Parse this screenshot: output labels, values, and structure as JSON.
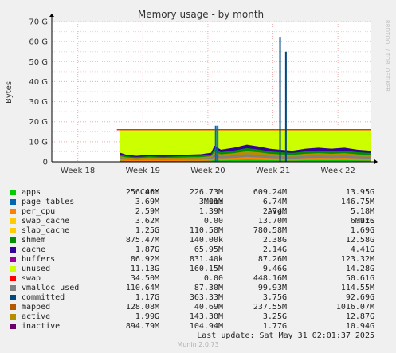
{
  "chart_data": {
    "type": "area",
    "title": "Memory usage - by month",
    "ylabel": "Bytes",
    "side_label": "RRDTOOL / TOBI OETIKER",
    "ylim": [
      0,
      70
    ],
    "y_ticks": [
      {
        "v": 0,
        "label": "0"
      },
      {
        "v": 10,
        "label": "10 G"
      },
      {
        "v": 20,
        "label": "20 G"
      },
      {
        "v": 30,
        "label": "30 G"
      },
      {
        "v": 40,
        "label": "40 G"
      },
      {
        "v": 50,
        "label": "50 G"
      },
      {
        "v": 60,
        "label": "60 G"
      },
      {
        "v": 70,
        "label": "70 G"
      }
    ],
    "xlim": [
      0,
      4.9
    ],
    "x_ticks": [
      {
        "v": 0.4,
        "label": "Week 18"
      },
      {
        "v": 1.4,
        "label": "Week 19"
      },
      {
        "v": 2.4,
        "label": "Week 20"
      },
      {
        "v": 3.4,
        "label": "Week 21"
      },
      {
        "v": 4.4,
        "label": "Week 22"
      }
    ],
    "unused_band": {
      "start": 1.05,
      "end": 4.9,
      "top_gb": 15.8,
      "color": "#ccff00"
    },
    "swap_line_gb": 16.0,
    "stacked_activity": {
      "x": [
        1.05,
        1.15,
        1.3,
        1.5,
        1.7,
        1.9,
        2.1,
        2.3,
        2.45,
        2.5,
        2.6,
        2.8,
        3.0,
        3.2,
        3.35,
        3.5,
        3.7,
        3.9,
        4.1,
        4.3,
        4.5,
        4.7,
        4.9
      ],
      "y": [
        4.5,
        3.5,
        3.0,
        3.5,
        3.2,
        3.4,
        3.6,
        3.8,
        4.5,
        8.0,
        6.0,
        7.0,
        8.5,
        7.5,
        6.5,
        6.0,
        5.5,
        6.5,
        7.0,
        6.5,
        7.0,
        6.0,
        5.5
      ]
    },
    "peaks": [
      {
        "x": 2.52,
        "y": 18.0,
        "color": "#0066b3"
      },
      {
        "x": 2.55,
        "y": 18.0,
        "color": "#0066b3"
      },
      {
        "x": 3.51,
        "y": 62.0,
        "color": "#00487d"
      },
      {
        "x": 3.6,
        "y": 55.0,
        "color": "#00487d"
      }
    ]
  },
  "legend": {
    "headers": {
      "cur": "Cur:",
      "min": "Min:",
      "avg": "Avg:",
      "max": "Max:"
    },
    "rows": [
      {
        "name": "apps",
        "color": "#00cc00",
        "cur": "256.46M",
        "min": "226.73M",
        "avg": "609.24M",
        "max": "13.95G"
      },
      {
        "name": "page_tables",
        "color": "#0066b3",
        "cur": "3.69M",
        "min": "3.01M",
        "avg": "6.74M",
        "max": "146.75M"
      },
      {
        "name": "per_cpu",
        "color": "#ff8000",
        "cur": "2.59M",
        "min": "1.39M",
        "avg": "2.74M",
        "max": "5.18M"
      },
      {
        "name": "swap_cache",
        "color": "#ffcc00",
        "cur": "3.62M",
        "min": "0.00",
        "avg": "13.70M",
        "max": "6.91G"
      },
      {
        "name": "slab_cache",
        "color": "#ffcc00",
        "cur": "1.25G",
        "min": "110.58M",
        "avg": "780.58M",
        "max": "1.69G"
      },
      {
        "name": "shmem",
        "color": "#008f00",
        "cur": "875.47M",
        "min": "140.00k",
        "avg": "2.38G",
        "max": "12.58G"
      },
      {
        "name": "cache",
        "color": "#330099",
        "cur": "1.87G",
        "min": "65.95M",
        "avg": "2.14G",
        "max": "4.41G"
      },
      {
        "name": "buffers",
        "color": "#990099",
        "cur": "86.92M",
        "min": "831.40k",
        "avg": "87.26M",
        "max": "123.32M"
      },
      {
        "name": "unused",
        "color": "#ccff00",
        "cur": "11.13G",
        "min": "160.15M",
        "avg": "9.46G",
        "max": "14.28G"
      },
      {
        "name": "swap",
        "color": "#ff0000",
        "cur": "34.50M",
        "min": "0.00",
        "avg": "448.16M",
        "max": "50.61G"
      },
      {
        "name": "vmalloc_used",
        "color": "#808080",
        "cur": "110.64M",
        "min": "87.30M",
        "avg": "99.93M",
        "max": "114.55M"
      },
      {
        "name": "committed",
        "color": "#00487d",
        "cur": "1.17G",
        "min": "363.33M",
        "avg": "3.75G",
        "max": "92.69G"
      },
      {
        "name": "mapped",
        "color": "#b35a00",
        "cur": "128.08M",
        "min": "40.69M",
        "avg": "237.55M",
        "max": "1016.07M"
      },
      {
        "name": "active",
        "color": "#b38f00",
        "cur": "1.99G",
        "min": "143.30M",
        "avg": "3.25G",
        "max": "12.87G"
      },
      {
        "name": "inactive",
        "color": "#6b006b",
        "cur": "894.79M",
        "min": "104.94M",
        "avg": "1.77G",
        "max": "10.94G"
      }
    ]
  },
  "last_update": "Last update: Sat May 31 02:01:37 2025",
  "munin_version": "Munin 2.0.73"
}
